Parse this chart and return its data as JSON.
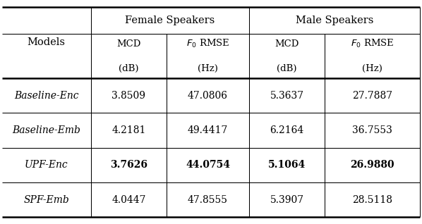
{
  "female_header": "Female Speakers",
  "male_header": "Male Speakers",
  "models_label": "Models",
  "col_headers": [
    [
      "MCD",
      "(dB)"
    ],
    [
      "$F_0$ RMSE",
      "(Hz)"
    ],
    [
      "MCD",
      "(dB)"
    ],
    [
      "$F_0$ RMSE",
      "(Hz)"
    ]
  ],
  "rows": [
    {
      "model": "Baseline-Enc",
      "values": [
        "3.8509",
        "47.0806",
        "5.3637",
        "27.7887"
      ],
      "bold_vals": [
        false,
        false,
        false,
        false
      ]
    },
    {
      "model": "Baseline-Emb",
      "values": [
        "4.2181",
        "49.4417",
        "6.2164",
        "36.7553"
      ],
      "bold_vals": [
        false,
        false,
        false,
        false
      ]
    },
    {
      "model": "UPF-Enc",
      "values": [
        "3.7626",
        "44.0754",
        "5.1064",
        "26.9880"
      ],
      "bold_vals": [
        true,
        true,
        true,
        true
      ]
    },
    {
      "model": "SPF-Emb",
      "values": [
        "4.0447",
        "47.8555",
        "5.3907",
        "28.5118"
      ],
      "bold_vals": [
        false,
        false,
        false,
        false
      ]
    }
  ],
  "bg_color": "#ffffff",
  "text_color": "#000000",
  "line_color": "#000000",
  "figw": 5.98,
  "figh": 3.18,
  "dpi": 100
}
